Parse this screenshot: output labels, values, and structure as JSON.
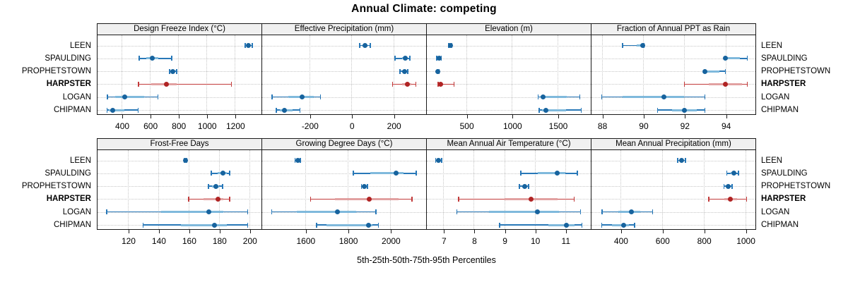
{
  "title": "Annual Climate: competing",
  "axis_caption": "5th-25th-50th-75th-95th Percentiles",
  "categories": [
    "LEEN",
    "SPAULDING",
    "PROPHETSTOWN",
    "HARPSTER",
    "LOGAN",
    "CHIPMAN"
  ],
  "highlight": "HARPSTER",
  "percentiles": [
    "5th",
    "25th",
    "50th",
    "75th",
    "95th"
  ],
  "colors": {
    "blue_line": "#2878b8",
    "blue_band": "#7fb9dc",
    "blue_dot": "#17639e",
    "red_line": "#c23b3b",
    "red_band": "#e2a1a1",
    "red_dot": "#b02424",
    "strip_bg": "#f0f0f0",
    "grid": "#c6c6c6"
  },
  "chart_data": [
    {
      "type": "dotplot",
      "title": "Design Freeze Index (°C)",
      "row": 0,
      "col": 0,
      "xlim": [
        230,
        1388
      ],
      "ticks": [
        400,
        600,
        800,
        1000,
        1200
      ],
      "series": [
        {
          "name": "LEEN",
          "q": [
            1272,
            1288,
            1297,
            1307,
            1323
          ]
        },
        {
          "name": "SPAULDING",
          "q": [
            525,
            575,
            615,
            660,
            755
          ]
        },
        {
          "name": "PROPHETSTOWN",
          "q": [
            738,
            750,
            760,
            773,
            788
          ]
        },
        {
          "name": "HARPSTER",
          "q": [
            520,
            610,
            715,
            790,
            1175
          ]
        },
        {
          "name": "LOGAN",
          "q": [
            300,
            355,
            420,
            560,
            658
          ]
        },
        {
          "name": "CHIPMAN",
          "q": [
            297,
            312,
            335,
            420,
            516
          ]
        }
      ]
    },
    {
      "type": "dotplot",
      "title": "Effective Precipitation (mm)",
      "row": 0,
      "col": 1,
      "xlim": [
        -425,
        356
      ],
      "ticks": [
        -200,
        0,
        200
      ],
      "series": [
        {
          "name": "LEEN",
          "q": [
            40,
            55,
            65,
            78,
            90
          ]
        },
        {
          "name": "SPAULDING",
          "q": [
            208,
            240,
            258,
            268,
            278
          ]
        },
        {
          "name": "PROPHETSTOWN",
          "q": [
            232,
            244,
            253,
            261,
            268
          ]
        },
        {
          "name": "HARPSTER",
          "q": [
            196,
            240,
            268,
            286,
            308
          ]
        },
        {
          "name": "LOGAN",
          "q": [
            -378,
            -300,
            -235,
            -180,
            -148
          ]
        },
        {
          "name": "CHIPMAN",
          "q": [
            -358,
            -340,
            -320,
            -280,
            -245
          ]
        }
      ]
    },
    {
      "type": "dotplot",
      "title": "Elevation (m)",
      "row": 0,
      "col": 2,
      "xlim": [
        70,
        1863
      ],
      "ticks": [
        500,
        1000,
        1500
      ],
      "series": [
        {
          "name": "LEEN",
          "q": [
            310,
            320,
            327,
            335,
            345
          ]
        },
        {
          "name": "SPAULDING",
          "q": [
            180,
            192,
            203,
            215,
            228
          ]
        },
        {
          "name": "PROPHETSTOWN",
          "q": [
            182,
            188,
            193,
            199,
            206
          ]
        },
        {
          "name": "HARPSTER",
          "q": [
            193,
            205,
            220,
            250,
            368
          ]
        },
        {
          "name": "LOGAN",
          "q": [
            1288,
            1312,
            1340,
            1600,
            1745
          ]
        },
        {
          "name": "CHIPMAN",
          "q": [
            1300,
            1330,
            1375,
            1590,
            1757
          ]
        }
      ]
    },
    {
      "type": "dotplot",
      "title": "Fraction of Annual PPT as Rain",
      "row": 0,
      "col": 3,
      "xlim": [
        87.5,
        95.45
      ],
      "ticks": [
        88,
        90,
        92,
        94
      ],
      "series": [
        {
          "name": "LEEN",
          "q": [
            89,
            89.7,
            90,
            90,
            90.05
          ]
        },
        {
          "name": "SPAULDING",
          "q": [
            94,
            94,
            94,
            94.7,
            95.05
          ]
        },
        {
          "name": "PROPHETSTOWN",
          "q": [
            93,
            93,
            93,
            93.7,
            94
          ]
        },
        {
          "name": "HARPSTER",
          "q": [
            92,
            93.2,
            94,
            94.8,
            95.05
          ]
        },
        {
          "name": "LOGAN",
          "q": [
            88,
            89,
            91,
            92,
            93
          ]
        },
        {
          "name": "CHIPMAN",
          "q": [
            90.7,
            91.4,
            92,
            92.6,
            93
          ]
        }
      ]
    },
    {
      "type": "dotplot",
      "title": "Frost-Free Days",
      "row": 1,
      "col": 0,
      "xlim": [
        100,
        208
      ],
      "ticks": [
        120,
        140,
        160,
        180,
        200
      ],
      "series": [
        {
          "name": "LEEN",
          "q": [
            157,
            157.5,
            158,
            158.5,
            159
          ]
        },
        {
          "name": "SPAULDING",
          "q": [
            175,
            179,
            182.5,
            185,
            187
          ]
        },
        {
          "name": "PROPHETSTOWN",
          "q": [
            173,
            175.5,
            178,
            180,
            182.5
          ]
        },
        {
          "name": "HARPSTER",
          "q": [
            160,
            170,
            179.5,
            183,
            187
          ]
        },
        {
          "name": "LOGAN",
          "q": [
            106,
            142,
            173.5,
            183,
            199
          ]
        },
        {
          "name": "CHIPMAN",
          "q": [
            130,
            155,
            177,
            185,
            199
          ]
        }
      ]
    },
    {
      "type": "dotplot",
      "title": "Growing Degree Days (°C)",
      "row": 1,
      "col": 1,
      "xlim": [
        1398,
        2168
      ],
      "ticks": [
        1600,
        1800,
        2000
      ],
      "series": [
        {
          "name": "LEEN",
          "q": [
            1552,
            1560,
            1565,
            1570,
            1578
          ]
        },
        {
          "name": "SPAULDING",
          "q": [
            1826,
            1905,
            2028,
            2062,
            2121
          ]
        },
        {
          "name": "PROPHETSTOWN",
          "q": [
            1864,
            1872,
            1878,
            1885,
            1893
          ]
        },
        {
          "name": "HARPSTER",
          "q": [
            1625,
            1740,
            1900,
            2040,
            2101
          ]
        },
        {
          "name": "LOGAN",
          "q": [
            1442,
            1560,
            1750,
            1840,
            1933
          ]
        },
        {
          "name": "CHIPMAN",
          "q": [
            1653,
            1700,
            1897,
            1916,
            1944
          ]
        }
      ]
    },
    {
      "type": "dotplot",
      "title": "Mean Annual Air Temperature (°C)",
      "row": 1,
      "col": 2,
      "xlim": [
        6.46,
        11.84
      ],
      "ticks": [
        7,
        8,
        9,
        10,
        11
      ],
      "series": [
        {
          "name": "LEEN",
          "q": [
            6.75,
            6.8,
            6.85,
            6.9,
            6.95
          ]
        },
        {
          "name": "SPAULDING",
          "q": [
            9.55,
            10.1,
            10.75,
            11.0,
            11.4
          ]
        },
        {
          "name": "PROPHETSTOWN",
          "q": [
            9.5,
            9.6,
            9.67,
            9.75,
            9.8
          ]
        },
        {
          "name": "HARPSTER",
          "q": [
            7.5,
            9.0,
            9.88,
            10.75,
            11.3
          ]
        },
        {
          "name": "LOGAN",
          "q": [
            7.45,
            8.5,
            10.1,
            10.8,
            11.5
          ]
        },
        {
          "name": "CHIPMAN",
          "q": [
            8.85,
            10.45,
            11.05,
            11.3,
            11.55
          ]
        }
      ]
    },
    {
      "type": "dotplot",
      "title": "Mean Annual Precipitation (mm)",
      "row": 1,
      "col": 3,
      "xlim": [
        261,
        1049
      ],
      "ticks": [
        400,
        600,
        800,
        1000
      ],
      "series": [
        {
          "name": "LEEN",
          "q": [
            676,
            687,
            695,
            703,
            713
          ]
        },
        {
          "name": "SPAULDING",
          "q": [
            911,
            930,
            944,
            953,
            967
          ]
        },
        {
          "name": "PROPHETSTOWN",
          "q": [
            898,
            910,
            918,
            928,
            937
          ]
        },
        {
          "name": "HARPSTER",
          "q": [
            825,
            900,
            929,
            960,
            1006
          ]
        },
        {
          "name": "LOGAN",
          "q": [
            312,
            390,
            452,
            495,
            554
          ]
        },
        {
          "name": "CHIPMAN",
          "q": [
            310,
            360,
            414,
            440,
            468
          ]
        }
      ]
    }
  ]
}
